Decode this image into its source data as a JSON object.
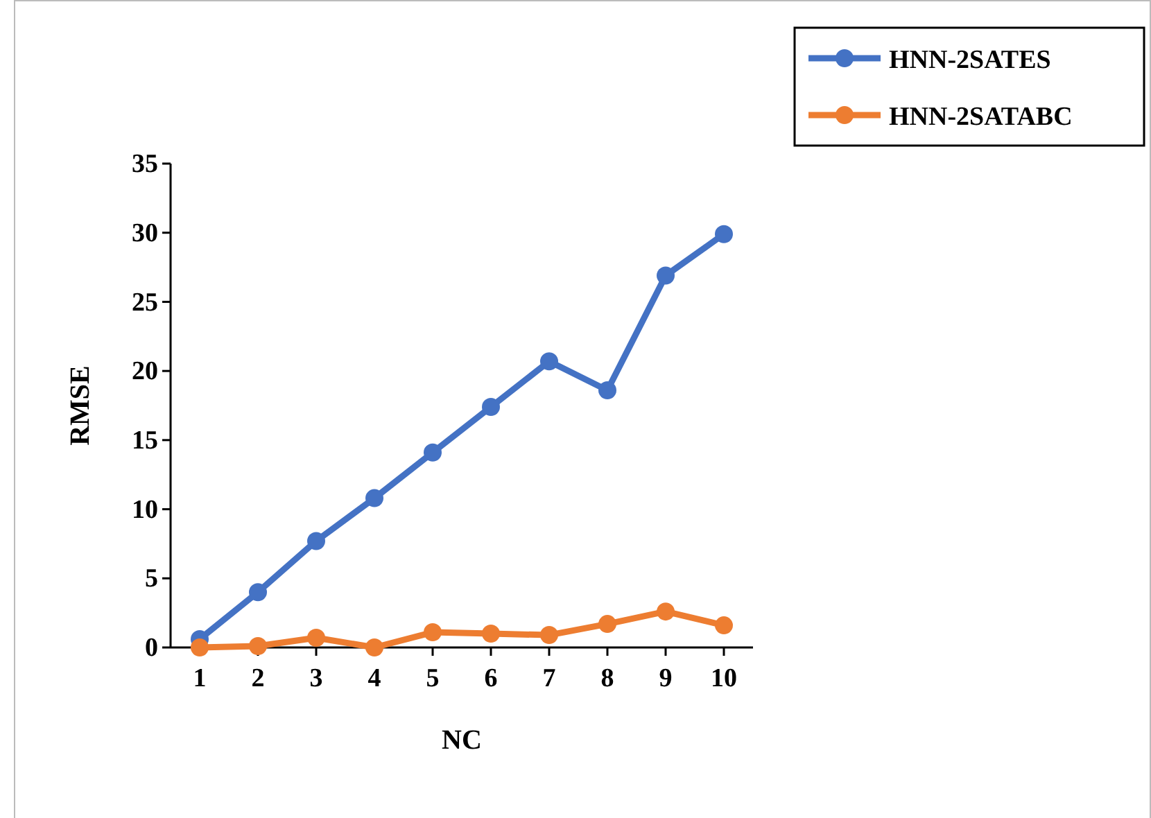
{
  "chart_data": {
    "type": "line",
    "xlabel": "NC",
    "ylabel": "RMSE",
    "categories": [
      "1",
      "2",
      "3",
      "4",
      "5",
      "6",
      "7",
      "8",
      "9",
      "10"
    ],
    "series": [
      {
        "name": "HNN-2SATES",
        "color": "#4472c4",
        "values": [
          0.6,
          4.0,
          7.7,
          10.8,
          14.1,
          17.4,
          20.7,
          18.6,
          26.9,
          29.9
        ]
      },
      {
        "name": "HNN-2SATABC",
        "color": "#ed7d31",
        "values": [
          0,
          0.1,
          0.7,
          0,
          1.1,
          1.0,
          0.9,
          1.7,
          2.6,
          1.6
        ]
      }
    ],
    "ylim": [
      0,
      35
    ],
    "yticks": [
      0,
      5,
      10,
      15,
      20,
      25,
      30,
      35
    ],
    "grid": false,
    "legend": "top right",
    "marker": "circle",
    "line_style": "solid"
  }
}
